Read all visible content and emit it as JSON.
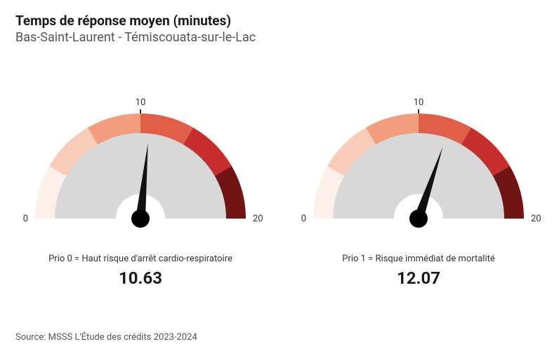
{
  "title": "Temps de réponse moyen (minutes)",
  "subtitle": "Bas-Saint-Laurent - Témiscouata-sur-le-Lac",
  "source": "Source: MSSS L'Étude des crédits 2023-2024",
  "gauge_style": {
    "min": 0,
    "max": 20,
    "mid": 10,
    "segment_colors": [
      "#fdf0ea",
      "#f9ccba",
      "#f29d7d",
      "#e15f48",
      "#c62d2d",
      "#701414"
    ],
    "face_color": "#d8d8d8",
    "hub_color": "#000000",
    "needle_color": "#111111",
    "tick_color": "#333333",
    "outer_radius": 150,
    "inner_radius": 122,
    "face_radius": 122,
    "hub_radius": 35,
    "needle_length": 108,
    "needle_base_width": 14,
    "tick_label_fontsize": 13,
    "caption_fontsize": 13,
    "value_fontsize": 24
  },
  "gauges": [
    {
      "caption": "Prio 0 = Haut risque d'arrêt cardio-respiratoire",
      "value": 10.63,
      "value_text": "10.63"
    },
    {
      "caption": "Prio 1 = Risque immédiat de mortalité",
      "value": 12.07,
      "value_text": "12.07"
    }
  ]
}
